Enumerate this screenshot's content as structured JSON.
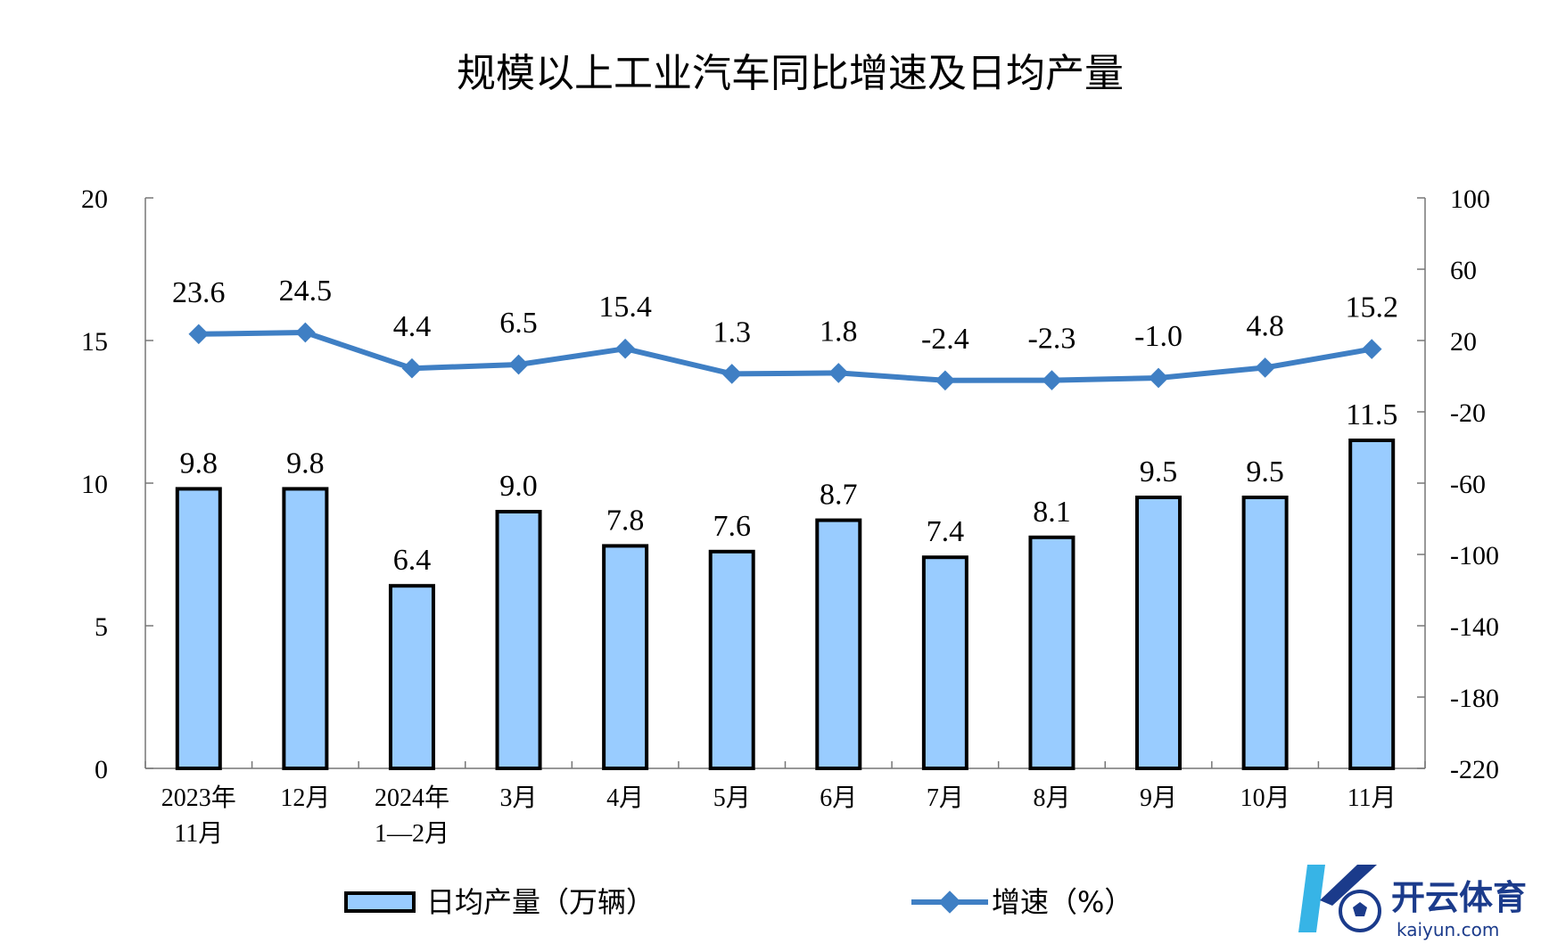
{
  "chart_data": {
    "type": "bar",
    "title": "规模以上工业汽车同比增速及日均产量",
    "categories": [
      [
        "2023年",
        "11月"
      ],
      [
        "12月"
      ],
      [
        "2024年",
        "1—2月"
      ],
      [
        "3月"
      ],
      [
        "4月"
      ],
      [
        "5月"
      ],
      [
        "6月"
      ],
      [
        "7月"
      ],
      [
        "8月"
      ],
      [
        "9月"
      ],
      [
        "10月"
      ],
      [
        "11月"
      ]
    ],
    "series": [
      {
        "name": "日均产量（万辆）",
        "type": "bar",
        "axis": "left",
        "color": "#99ccff",
        "values": [
          9.8,
          9.8,
          6.4,
          9.0,
          7.8,
          7.6,
          8.7,
          7.4,
          8.1,
          9.5,
          9.5,
          11.5
        ],
        "labels": [
          "9.8",
          "9.8",
          "6.4",
          "9.0",
          "7.8",
          "7.6",
          "8.7",
          "7.4",
          "8.1",
          "9.5",
          "9.5",
          "11.5"
        ]
      },
      {
        "name": "增速（%）",
        "type": "line",
        "axis": "right",
        "color": "#3f7fc4",
        "values": [
          23.6,
          24.5,
          4.4,
          6.5,
          15.4,
          1.3,
          1.8,
          -2.4,
          -2.3,
          -1.0,
          4.8,
          15.2
        ],
        "labels": [
          "23.6",
          "24.5",
          "4.4",
          "6.5",
          "15.4",
          "1.3",
          "1.8",
          "-2.4",
          "-2.3",
          "-1.0",
          "4.8",
          "15.2"
        ]
      }
    ],
    "y_left": {
      "min": 0,
      "max": 20,
      "ticks": [
        "0",
        "5",
        "10",
        "15",
        "20"
      ]
    },
    "y_right": {
      "min": -220,
      "max": 100,
      "ticks": [
        "-220",
        "-180",
        "-140",
        "-100",
        "-60",
        "-20",
        "20",
        "60",
        "100"
      ]
    },
    "grid": false,
    "legend": "bottom"
  },
  "watermark": {
    "brand": "开云体育",
    "url": "kaiyun.com",
    "colors": {
      "primary": "#1b3b8b",
      "accent": "#37b4e6"
    }
  }
}
